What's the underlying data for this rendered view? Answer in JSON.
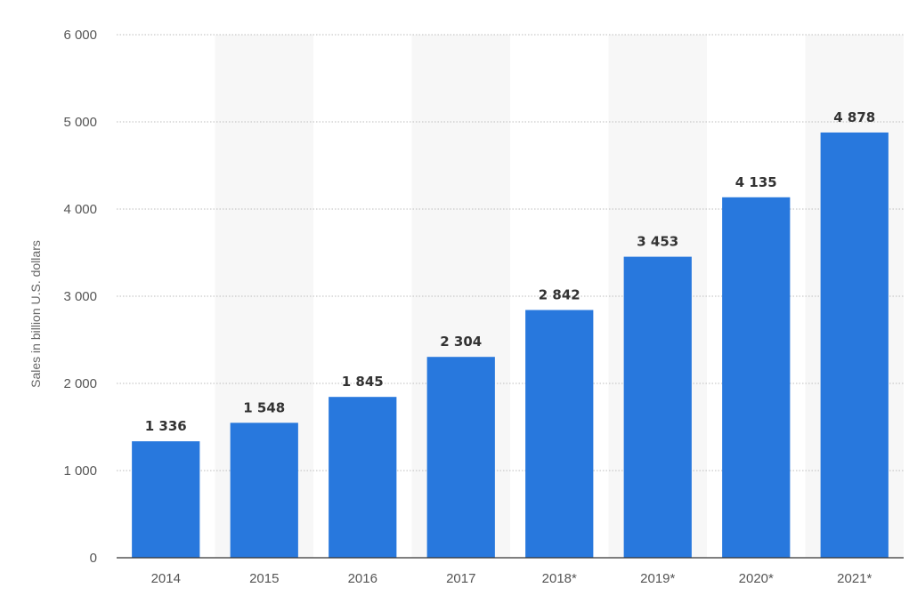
{
  "chart_data": {
    "type": "bar",
    "title": "",
    "xlabel": "",
    "ylabel": "Sales in billion U.S. dollars",
    "categories": [
      "2014",
      "2015",
      "2016",
      "2017",
      "2018*",
      "2019*",
      "2020*",
      "2021*"
    ],
    "values": [
      1336,
      1548,
      1845,
      2304,
      2842,
      3453,
      4135,
      4878
    ],
    "value_labels": [
      "1 336",
      "1 548",
      "1 845",
      "2 304",
      "2 842",
      "3 453",
      "4 135",
      "4 878"
    ],
    "ylim": [
      0,
      6000
    ],
    "yticks": [
      0,
      1000,
      2000,
      3000,
      4000,
      5000,
      6000
    ],
    "ytick_labels": [
      "0",
      "1 000",
      "2 000",
      "3 000",
      "4 000",
      "5 000",
      "6 000"
    ],
    "grid": true,
    "grid_style": "dotted",
    "alternating_column_bands": true,
    "legend": "none",
    "colors": {
      "bar": "#2878dd",
      "band": "#f7f7f7",
      "grid": "#bdbdbd",
      "axis": "#333333"
    }
  }
}
